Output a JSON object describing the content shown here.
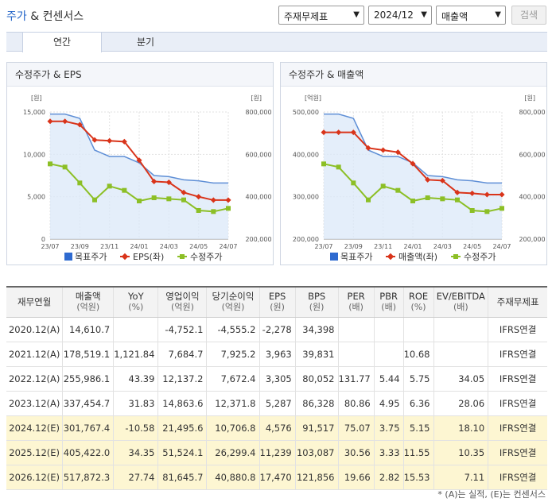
{
  "header": {
    "title_a": "주가",
    "title_amp": "&",
    "title_b": "컨센서스",
    "select_type": "주재무제표",
    "select_period": "2024/12",
    "select_item": "매출액",
    "search_label": "검색"
  },
  "tabs": [
    {
      "label": "연간"
    },
    {
      "label": "분기"
    }
  ],
  "left_chart": {
    "title": "수정주가 & EPS",
    "left_unit": "[원]",
    "right_unit": "[원]",
    "left_ticks": [
      "15,000",
      "10,000",
      "5,000",
      "0"
    ],
    "right_ticks": [
      "800,000",
      "600,000",
      "400,000",
      "200,000"
    ],
    "x_ticks": [
      "23/07",
      "23/09",
      "23/11",
      "24/01",
      "24/03",
      "24/05",
      "24/07"
    ],
    "legend": [
      "목표주가",
      "EPS(좌)",
      "수정주가"
    ]
  },
  "right_chart": {
    "title": "수정주가 & 매출액",
    "left_unit": "[억원]",
    "right_unit": "[원]",
    "left_ticks": [
      "500,000",
      "400,000",
      "300,000",
      "200,000"
    ],
    "right_ticks": [
      "800,000",
      "600,000",
      "400,000",
      "200,000"
    ],
    "x_ticks": [
      "23/07",
      "23/09",
      "23/11",
      "24/01",
      "24/03",
      "24/05",
      "24/07"
    ],
    "legend": [
      "목표주가",
      "매출액(좌)",
      "수정주가"
    ]
  },
  "chart_data": [
    {
      "type": "line",
      "title": "수정주가 & EPS",
      "x": [
        "23/07",
        "23/08",
        "23/09",
        "23/10",
        "23/11",
        "23/12",
        "24/01",
        "24/02",
        "24/03",
        "24/04",
        "24/05",
        "24/06",
        "24/07"
      ],
      "series": [
        {
          "name": "EPS(좌)",
          "axis": "left",
          "values": [
            13900,
            13900,
            13500,
            11700,
            11600,
            11500,
            9300,
            6800,
            6700,
            5500,
            5000,
            4600,
            4600
          ]
        },
        {
          "name": "목표주가",
          "axis": "right",
          "values": [
            790000,
            790000,
            770000,
            620000,
            590000,
            590000,
            560000,
            500000,
            495000,
            480000,
            475000,
            465000,
            465000
          ]
        },
        {
          "name": "수정주가",
          "axis": "right",
          "values": [
            555000,
            540000,
            465000,
            385000,
            450000,
            430000,
            380000,
            395000,
            390000,
            385000,
            335000,
            330000,
            345000
          ]
        }
      ],
      "ylim_left": [
        0,
        15000
      ],
      "ylim_right": [
        200000,
        800000
      ]
    },
    {
      "type": "line",
      "title": "수정주가 & 매출액",
      "x": [
        "23/07",
        "23/08",
        "23/09",
        "23/10",
        "23/11",
        "23/12",
        "24/01",
        "24/02",
        "24/03",
        "24/04",
        "24/05",
        "24/06",
        "24/07"
      ],
      "series": [
        {
          "name": "매출액(좌)",
          "axis": "left",
          "values": [
            452000,
            452000,
            452000,
            415000,
            410000,
            405000,
            378000,
            340000,
            338000,
            310000,
            308000,
            305000,
            305000
          ]
        },
        {
          "name": "목표주가",
          "axis": "right",
          "values": [
            790000,
            790000,
            770000,
            620000,
            590000,
            590000,
            560000,
            500000,
            495000,
            480000,
            475000,
            465000,
            465000
          ]
        },
        {
          "name": "수정주가",
          "axis": "right",
          "values": [
            555000,
            540000,
            465000,
            385000,
            450000,
            430000,
            380000,
            395000,
            390000,
            385000,
            335000,
            330000,
            345000
          ]
        }
      ],
      "ylim_left": [
        200000,
        500000
      ],
      "ylim_right": [
        200000,
        800000
      ]
    }
  ],
  "table": {
    "headers": [
      {
        "main": "재무연월",
        "sub": ""
      },
      {
        "main": "매출액",
        "sub": "(억원)"
      },
      {
        "main": "YoY",
        "sub": "(%)"
      },
      {
        "main": "영업이익",
        "sub": "(억원)"
      },
      {
        "main": "당기순이익",
        "sub": "(억원)"
      },
      {
        "main": "EPS",
        "sub": "(원)"
      },
      {
        "main": "BPS",
        "sub": "(원)"
      },
      {
        "main": "PER",
        "sub": "(배)"
      },
      {
        "main": "PBR",
        "sub": "(배)"
      },
      {
        "main": "ROE",
        "sub": "(%)"
      },
      {
        "main": "EV/EBITDA",
        "sub": "(배)"
      },
      {
        "main": "주재무제표",
        "sub": ""
      }
    ],
    "rows": [
      {
        "est": false,
        "cells": [
          "2020.12(A)",
          "14,610.7",
          "",
          "-4,752.1",
          "-4,555.2",
          "-2,278",
          "34,398",
          "",
          "",
          "",
          "",
          "IFRS연결"
        ]
      },
      {
        "est": false,
        "cells": [
          "2021.12(A)",
          "178,519.1",
          "1,121.84",
          "7,684.7",
          "7,925.2",
          "3,963",
          "39,831",
          "",
          "",
          "10.68",
          "",
          "IFRS연결"
        ]
      },
      {
        "est": false,
        "cells": [
          "2022.12(A)",
          "255,986.1",
          "43.39",
          "12,137.2",
          "7,672.4",
          "3,305",
          "80,052",
          "131.77",
          "5.44",
          "5.75",
          "34.05",
          "IFRS연결"
        ]
      },
      {
        "est": false,
        "cells": [
          "2023.12(A)",
          "337,454.7",
          "31.83",
          "14,863.6",
          "12,371.8",
          "5,287",
          "86,328",
          "80.86",
          "4.95",
          "6.36",
          "28.06",
          "IFRS연결"
        ]
      },
      {
        "est": true,
        "cells": [
          "2024.12(E)",
          "301,767.4",
          "-10.58",
          "21,495.6",
          "10,706.8",
          "4,576",
          "91,517",
          "75.07",
          "3.75",
          "5.15",
          "18.10",
          "IFRS연결"
        ]
      },
      {
        "est": true,
        "cells": [
          "2025.12(E)",
          "405,422.0",
          "34.35",
          "51,524.1",
          "26,299.4",
          "11,239",
          "103,087",
          "30.56",
          "3.33",
          "11.55",
          "10.35",
          "IFRS연결"
        ]
      },
      {
        "est": true,
        "cells": [
          "2026.12(E)",
          "517,872.3",
          "27.74",
          "81,645.7",
          "40,880.8",
          "17,470",
          "121,856",
          "19.66",
          "2.82",
          "15.53",
          "7.11",
          "IFRS연결"
        ]
      }
    ]
  },
  "footnote": "* (A)는 실적, (E)는 컨센서스",
  "colors": {
    "target": "#2e6ad0",
    "eps": "#d9341a",
    "price": "#8cbf26",
    "estimate_bg": "#fdf6d2"
  }
}
